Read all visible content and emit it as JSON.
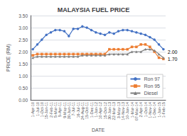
{
  "chart_data": {
    "type": "line",
    "title": "MALAYSIA FUEL PRICE",
    "xlabel": "DATE",
    "ylabel": "PRICE (RM)",
    "categories": [
      "1-Apr-10",
      "1-Jul-10",
      "1-Oct-10",
      "15-Jan-11",
      "2-Feb-11",
      "5-Mar-11",
      "5-Apr-11",
      "9-May-11",
      "30-Jun-11",
      "7-Jul-11",
      "16-Jul-11",
      "24-Aug-11",
      "15-Oct-11",
      "1-Dec-11",
      "1-Jan-12",
      "10-Apr-12",
      "15-Oct-12",
      "30-Jan-13",
      "22-Mar-13",
      "3-May-13",
      "14-Nov-13",
      "10-Jan-14",
      "1-Mar-14",
      "07-Mac-14",
      "2-Apr-14",
      "1-Oct-14",
      "1-Nov-14",
      "1-Dec-14",
      "1-Jan-15",
      "1-Feb-15"
    ],
    "series": [
      {
        "name": "Ron 97",
        "color": "#4472C4",
        "marker": "circle",
        "values": [
          2.1,
          2.3,
          2.5,
          2.7,
          2.8,
          2.9,
          2.9,
          2.85,
          2.65,
          2.95,
          2.95,
          3.05,
          3.0,
          2.9,
          2.8,
          2.75,
          2.7,
          2.8,
          2.75,
          2.85,
          2.9,
          2.9,
          2.85,
          2.8,
          2.75,
          2.7,
          2.6,
          2.5,
          2.3,
          2.1
        ]
      },
      {
        "name": "Ron 95",
        "color": "#ED7D31",
        "marker": "square",
        "values": [
          1.85,
          1.9,
          1.9,
          1.9,
          1.9,
          1.9,
          1.9,
          1.9,
          1.9,
          1.9,
          1.9,
          1.9,
          1.9,
          1.9,
          1.9,
          1.9,
          1.9,
          2.1,
          2.1,
          2.1,
          2.1,
          2.1,
          2.2,
          2.2,
          2.3,
          2.3,
          2.2,
          2.0,
          1.75,
          1.7
        ]
      },
      {
        "name": "Diesel",
        "color": "#7F7F7F",
        "marker": "triangle",
        "values": [
          1.75,
          1.8,
          1.8,
          1.8,
          1.8,
          1.8,
          1.8,
          1.8,
          1.8,
          1.8,
          1.8,
          1.85,
          1.85,
          1.85,
          1.85,
          1.85,
          1.85,
          1.9,
          1.9,
          1.9,
          1.9,
          1.9,
          2.0,
          2.0,
          2.0,
          2.1,
          2.1,
          2.05,
          1.9,
          1.75
        ]
      }
    ],
    "ylim": [
      0,
      3.5
    ],
    "yticks": [
      {
        "value": 0.0,
        "label": "0.00"
      },
      {
        "value": 0.5,
        "label": "0.50"
      },
      {
        "value": 1.0,
        "label": "1.00"
      },
      {
        "value": 1.5,
        "label": "1.50"
      },
      {
        "value": 2.0,
        "label": "2.00"
      },
      {
        "value": 2.5,
        "label": "2.50"
      },
      {
        "value": 3.0,
        "label": "3.00"
      },
      {
        "value": 3.5,
        "label": "3.50"
      }
    ],
    "grid": true,
    "legend": "lower right",
    "annotations": [
      {
        "text": "2.00",
        "y": 2.0
      },
      {
        "text": "1.70",
        "y": 1.7
      }
    ]
  }
}
